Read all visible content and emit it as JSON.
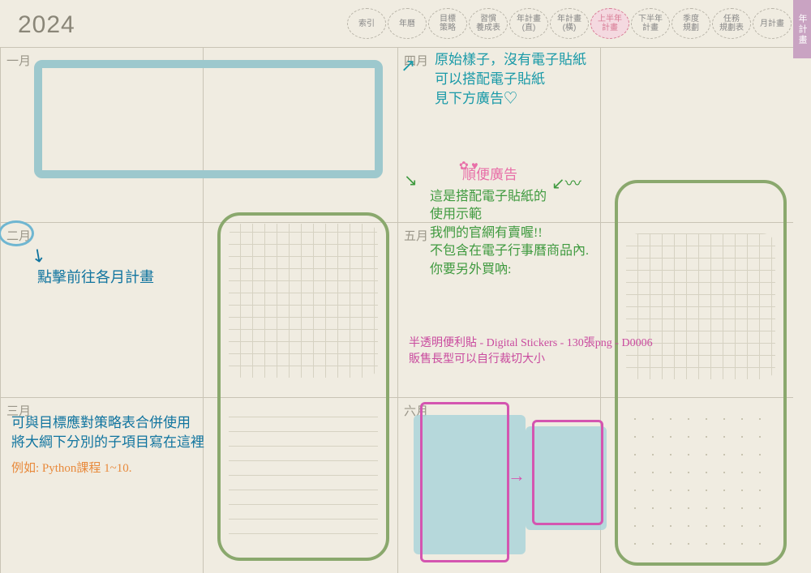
{
  "year": "2024",
  "colors": {
    "paper": "#f0ece1",
    "gridline": "#c9c4b5",
    "yearText": "#8a8678",
    "monthText": "#9a9689",
    "tabActiveBg": "#f4d9e0",
    "tabActiveText": "#d87a94",
    "sideTab": "#c9a3c2",
    "blueBox": "#9dc8cd",
    "blueFill": "#a8d3da",
    "greenBox": "#8aa86d",
    "pinkBox": "#d455b0",
    "handTeal": "#1a9aa8",
    "handBlue": "#10749f",
    "handGreen": "#3f9a3f",
    "handPink": "#e86fa8",
    "handMagenta": "#c94a9e",
    "handOrange": "#e88a3c",
    "febCircle": "#6fb6d1"
  },
  "nav": {
    "tabs": [
      {
        "label": "索引"
      },
      {
        "label": "年曆"
      },
      {
        "label": "目標\n策略"
      },
      {
        "label": "習慣\n養成表"
      },
      {
        "label": "年計畫\n(直)"
      },
      {
        "label": "年計畫\n(橫)"
      },
      {
        "label": "上半年\n計畫",
        "active": true
      },
      {
        "label": "下半年\n計畫"
      },
      {
        "label": "季度\n規劃"
      },
      {
        "label": "任務\n規劃表"
      },
      {
        "label": "月計畫"
      }
    ],
    "sideTab": "年計畫"
  },
  "months": {
    "jan": "一月",
    "feb": "二月",
    "mar": "三月",
    "apr": "四月",
    "may": "五月",
    "jun": "六月"
  },
  "notes": {
    "apr": "原始樣子，沒有電子貼紙\n可以搭配電子貼紙\n見下方廣告♡",
    "adHeader": "順便廣告",
    "may": "這是搭配電子貼紙的\n使用示範\n我們的官網有賣喔!!\n不包含在電子行事曆商品內.\n你要另外買吶:",
    "product": "半透明便利貼 - Digital Stickers - 130張png - D0006\n販售長型可以自行裁切大小",
    "feb": "點擊前往各月計畫",
    "mar1": "可與目標應對策略表合併使用\n將大綱下分別的子項目寫在這裡",
    "mar2": "例如: Python課程 1~10."
  }
}
